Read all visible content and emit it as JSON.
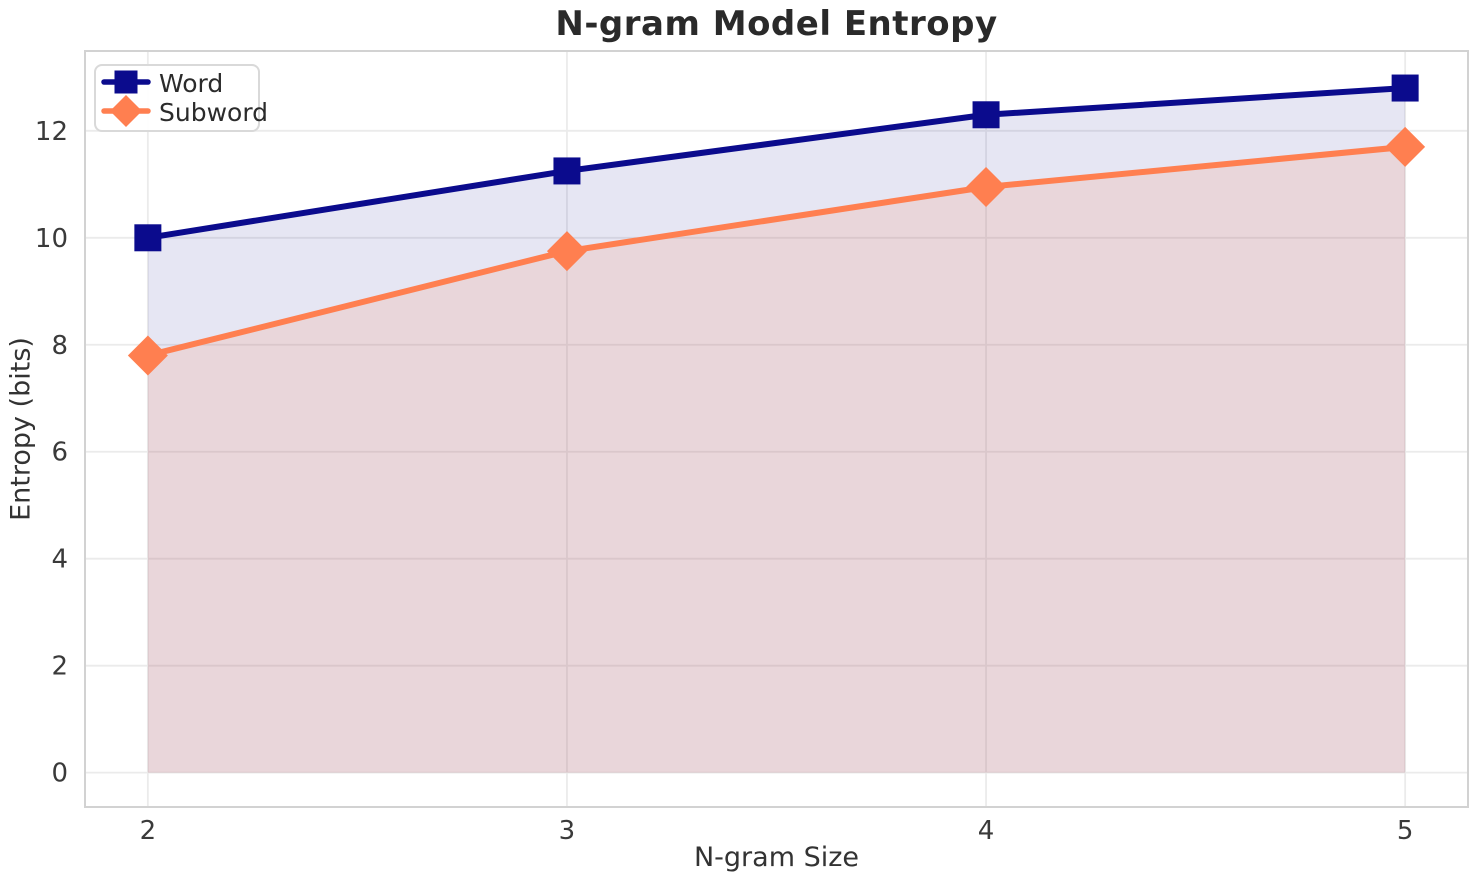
{
  "chart_data": {
    "type": "line",
    "title": "N-gram Model Entropy",
    "xlabel": "N-gram Size",
    "ylabel": "Entropy (bits)",
    "x": [
      2,
      3,
      4,
      5
    ],
    "series": [
      {
        "name": "Word",
        "values": [
          10.0,
          11.25,
          12.3,
          12.8
        ],
        "color": "#0b0b8d",
        "marker": "square",
        "fill_to_zero": true,
        "fill_opacity": 0.1
      },
      {
        "name": "Subword",
        "values": [
          7.8,
          9.75,
          10.95,
          11.7
        ],
        "color": "#ff7f50",
        "marker": "diamond",
        "fill_to_zero": true,
        "fill_opacity": 0.15
      }
    ],
    "xticks": [
      2,
      3,
      4,
      5
    ],
    "yticks": [
      0,
      2,
      4,
      6,
      8,
      10,
      12
    ],
    "xlim": [
      1.85,
      5.15
    ],
    "ylim": [
      -0.6425,
      13.4925
    ],
    "grid": true,
    "legend_position": "upper left",
    "colors": {
      "grid": "#ebebeb",
      "spine": "#d2d2d2",
      "tick_label": "#3a3a3a",
      "title": "#2a2a2a"
    }
  }
}
